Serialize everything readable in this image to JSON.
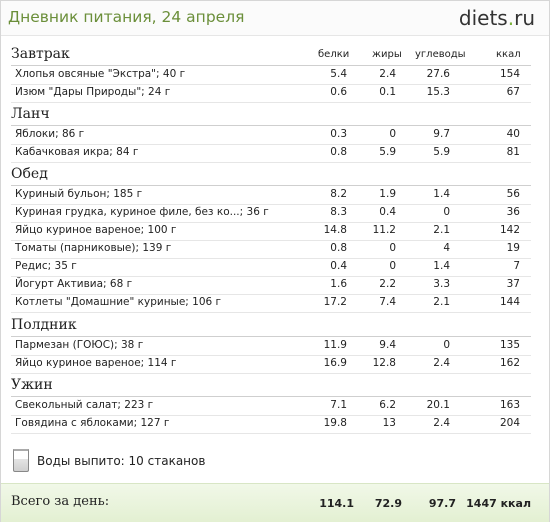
{
  "title": "Дневник питания, 24 апреля",
  "logo": {
    "name": "diets",
    "dot": ".",
    "tld": "ru"
  },
  "columns": {
    "protein": "белки",
    "fat": "жиры",
    "carbs": "углеводы",
    "kcal": "ккал"
  },
  "sections": [
    {
      "name": "Завтрак",
      "items": [
        {
          "name": "Хлопья овсяные \"Экстра\"; 40 г",
          "protein": "5.4",
          "fat": "2.4",
          "carbs": "27.6",
          "kcal": "154"
        },
        {
          "name": "Изюм \"Дары Природы\"; 24 г",
          "protein": "0.6",
          "fat": "0.1",
          "carbs": "15.3",
          "kcal": "67"
        }
      ]
    },
    {
      "name": "Ланч",
      "items": [
        {
          "name": "Яблоки; 86 г",
          "protein": "0.3",
          "fat": "0",
          "carbs": "9.7",
          "kcal": "40"
        },
        {
          "name": "Кабачковая икра; 84 г",
          "protein": "0.8",
          "fat": "5.9",
          "carbs": "5.9",
          "kcal": "81"
        }
      ]
    },
    {
      "name": "Обед",
      "items": [
        {
          "name": "Куриный бульон; 185 г",
          "protein": "8.2",
          "fat": "1.9",
          "carbs": "1.4",
          "kcal": "56"
        },
        {
          "name": "Куриная грудка, куриное филе, без ко...; 36 г",
          "protein": "8.3",
          "fat": "0.4",
          "carbs": "0",
          "kcal": "36"
        },
        {
          "name": "Яйцо куриное вареное; 100 г",
          "protein": "14.8",
          "fat": "11.2",
          "carbs": "2.1",
          "kcal": "142"
        },
        {
          "name": "Томаты (парниковые); 139 г",
          "protein": "0.8",
          "fat": "0",
          "carbs": "4",
          "kcal": "19"
        },
        {
          "name": "Редис; 35 г",
          "protein": "0.4",
          "fat": "0",
          "carbs": "1.4",
          "kcal": "7"
        },
        {
          "name": "Йогурт Активиа; 68 г",
          "protein": "1.6",
          "fat": "2.2",
          "carbs": "3.3",
          "kcal": "37"
        },
        {
          "name": "Котлеты \"Домашние\" куриные; 106 г",
          "protein": "17.2",
          "fat": "7.4",
          "carbs": "2.1",
          "kcal": "144"
        }
      ]
    },
    {
      "name": "Полдник",
      "items": [
        {
          "name": "Пармезан (ГОЮС); 38 г",
          "protein": "11.9",
          "fat": "9.4",
          "carbs": "0",
          "kcal": "135"
        },
        {
          "name": "Яйцо куриное вареное; 114 г",
          "protein": "16.9",
          "fat": "12.8",
          "carbs": "2.4",
          "kcal": "162"
        }
      ]
    },
    {
      "name": "Ужин",
      "items": [
        {
          "name": "Свекольный салат; 223 г",
          "protein": "7.1",
          "fat": "6.2",
          "carbs": "20.1",
          "kcal": "163"
        },
        {
          "name": "Говядина с яблоками; 127 г",
          "protein": "19.8",
          "fat": "13",
          "carbs": "2.4",
          "kcal": "204"
        }
      ]
    }
  ],
  "water": "Воды выпито: 10 стаканов",
  "total": {
    "label": "Всего за день:",
    "protein": "114.1",
    "fat": "72.9",
    "carbs": "97.7",
    "kcal": "1447 ккал"
  },
  "colors": {
    "title": "#6b8f3a",
    "logo_accent": "#7cb33c",
    "total_bg": "#e8f3da"
  }
}
